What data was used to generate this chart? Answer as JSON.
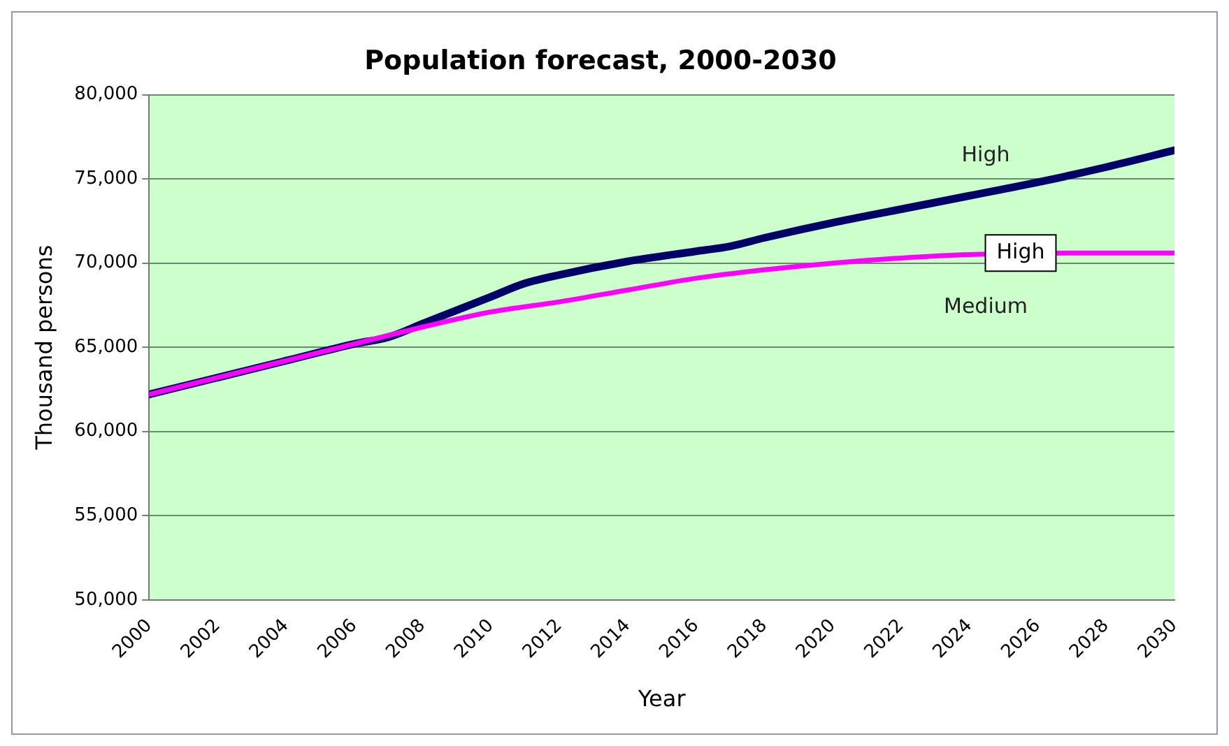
{
  "chart_data": {
    "type": "line",
    "title": "Population forecast, 2000-2030",
    "xlabel": "Year",
    "ylabel": "Thousand persons",
    "xlim": [
      2000,
      2030
    ],
    "xticks": [
      2000,
      2002,
      2004,
      2006,
      2008,
      2010,
      2012,
      2014,
      2016,
      2018,
      2020,
      2022,
      2024,
      2026,
      2028,
      2030
    ],
    "ylim": [
      50000,
      80000
    ],
    "yticks": [
      {
        "value": 50000,
        "label": "50,000"
      },
      {
        "value": 55000,
        "label": "55,000"
      },
      {
        "value": 60000,
        "label": "60,000"
      },
      {
        "value": 65000,
        "label": "65,000"
      },
      {
        "value": 70000,
        "label": "70,000"
      },
      {
        "value": 75000,
        "label": "75,000"
      },
      {
        "value": 80000,
        "label": "80,000"
      }
    ],
    "grid": "y",
    "legend": false,
    "marker": "none",
    "line_style": "solid",
    "series": [
      {
        "name": "High",
        "color": "#000066",
        "x": [
          2000,
          2002,
          2004,
          2006,
          2007,
          2008,
          2010,
          2011,
          2012,
          2014,
          2016,
          2017,
          2018,
          2020,
          2022,
          2024,
          2026,
          2028,
          2030
        ],
        "values": [
          62200,
          63200,
          64200,
          65200,
          65600,
          66400,
          68000,
          68800,
          69300,
          70100,
          70700,
          71000,
          71500,
          72400,
          73200,
          74000,
          74800,
          75700,
          76700
        ]
      },
      {
        "name": "Medium",
        "color": "#ff00ff",
        "x": [
          2000,
          2002,
          2004,
          2006,
          2008,
          2010,
          2012,
          2014,
          2016,
          2018,
          2020,
          2022,
          2024,
          2028,
          2030
        ],
        "values": [
          62200,
          63200,
          64200,
          65200,
          66200,
          67100,
          67700,
          68400,
          69100,
          69600,
          70000,
          70300,
          70500,
          70600,
          70600
        ]
      }
    ],
    "annotations": [
      {
        "text": "High",
        "x": 2025.5,
        "y": 70600
      }
    ]
  }
}
